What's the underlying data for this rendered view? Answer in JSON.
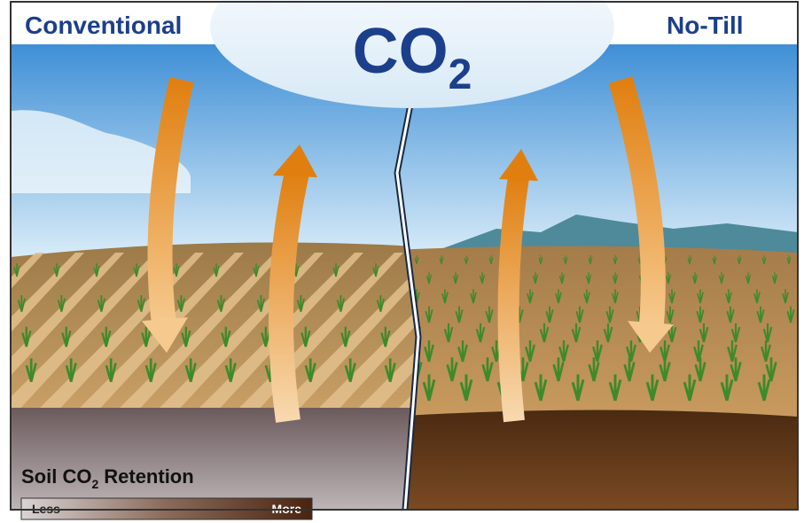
{
  "panels": {
    "left": "Conventional",
    "right": "No-Till"
  },
  "cloud": {
    "text": "CO",
    "subscript": "2"
  },
  "legend": {
    "title": {
      "before": "Soil CO",
      "subscript": "2",
      "after": "Retention"
    },
    "low": "Less",
    "high": "More"
  }
}
